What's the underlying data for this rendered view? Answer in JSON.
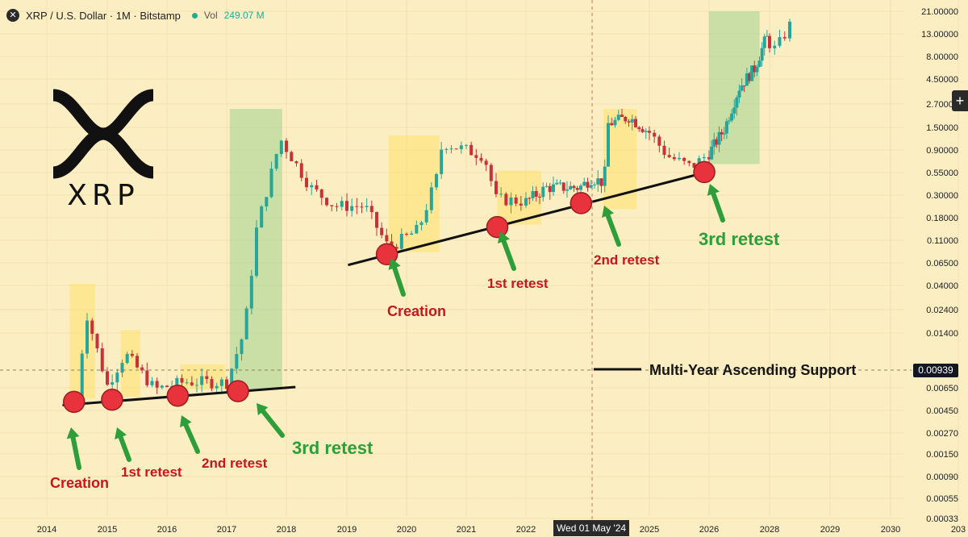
{
  "header": {
    "symbol": "XRP / U.S. Dollar · 1M · Bitstamp",
    "vol_label": "Vol",
    "vol_value": "249.07 M"
  },
  "logo": {
    "text": "XRP"
  },
  "crosshair": {
    "price": "0.00939",
    "date": "Wed 01 May '24"
  },
  "chart_data": {
    "type": "candlestick",
    "scale": "log",
    "y_ticks": [
      "21.00000",
      "13.00000",
      "8.00000",
      "4.50000",
      "2.70000",
      "1.50000",
      "0.90000",
      "0.55000",
      "0.30000",
      "0.18000",
      "0.11000",
      "0.06500",
      "0.04000",
      "0.02400",
      "0.01400",
      "0.00650",
      "0.00450",
      "0.00270",
      "0.00150",
      "0.00090",
      "0.00055",
      "0.00033"
    ],
    "x_ticks": [
      "2014",
      "2015",
      "2016",
      "2017",
      "2018",
      "2019",
      "2020",
      "2021",
      "2022",
      "2025",
      "2026",
      "2028",
      "2029",
      "2030",
      "203"
    ],
    "colors": {
      "up": "#26a69a",
      "down": "#c8303a",
      "support": "#111111",
      "retest": "#e8323c",
      "red_label": "#c8161e",
      "green_label": "#2e9e3a",
      "arrow": "#2e9e3a"
    },
    "series": [
      {
        "date": "2014.5",
        "close": 0.0045
      },
      {
        "date": "2014.65",
        "close": 0.03
      },
      {
        "date": "2015.0",
        "close": 0.006
      },
      {
        "date": "2015.3",
        "close": 0.012
      },
      {
        "date": "2015.8",
        "close": 0.0055
      },
      {
        "date": "2016.3",
        "close": 0.0065
      },
      {
        "date": "2017.0",
        "close": 0.0064
      },
      {
        "date": "2017.3",
        "close": 0.02
      },
      {
        "date": "2017.5",
        "close": 0.18
      },
      {
        "date": "2017.9",
        "close": 1.3
      },
      {
        "date": "2018.4",
        "close": 0.45
      },
      {
        "date": "2018.8",
        "close": 0.3
      },
      {
        "date": "2019.3",
        "close": 0.3
      },
      {
        "date": "2019.7",
        "close": 0.12
      },
      {
        "date": "2020.2",
        "close": 0.18
      },
      {
        "date": "2020.5",
        "close": 0.55
      },
      {
        "date": "2020.6",
        "close": 1.2
      },
      {
        "date": "2021.3",
        "close": 0.9
      },
      {
        "date": "2021.5",
        "close": 0.35
      },
      {
        "date": "2022.0",
        "close": 0.33
      },
      {
        "date": "2022.5",
        "close": 0.45
      },
      {
        "date": "2023.3",
        "close": 0.45
      },
      {
        "date": "2023.6",
        "close": 0.55
      },
      {
        "date": "2023.9",
        "close": 0.5
      },
      {
        "date": "2024.0",
        "close": 1.8
      },
      {
        "date": "2024.5",
        "close": 2.1
      },
      {
        "date": "2025.0",
        "close": 1.5
      },
      {
        "date": "2025.3",
        "close": 0.9
      },
      {
        "date": "2025.7",
        "close": 0.7
      },
      {
        "date": "2026.0",
        "close": 0.95
      },
      {
        "date": "2026.5",
        "close": 1.6
      },
      {
        "date": "2027.0",
        "close": 4
      },
      {
        "date": "2027.5",
        "close": 6
      },
      {
        "date": "2027.9",
        "close": 12
      },
      {
        "date": "2028.1",
        "close": 9
      },
      {
        "date": "2028.4",
        "close": 18
      }
    ],
    "annotations": {
      "left": [
        "Creation",
        "1st retest",
        "2nd retest",
        "3rd retest"
      ],
      "right": [
        "Creation",
        "1st retest",
        "2nd retest",
        "3rd retest"
      ],
      "legend_text": "Multi-Year Ascending Support"
    }
  }
}
